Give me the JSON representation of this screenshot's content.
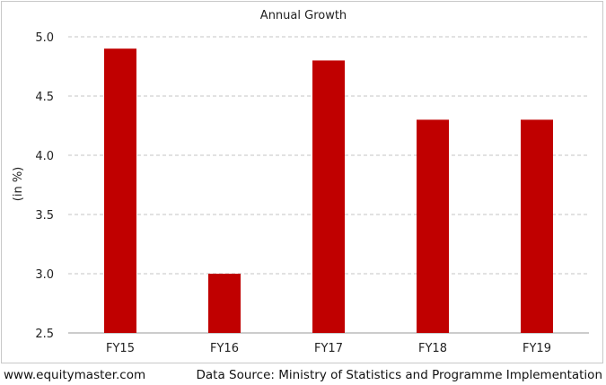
{
  "chart_data": {
    "type": "bar",
    "title": "Annual Growth",
    "xlabel": "",
    "ylabel": "(in %)",
    "categories": [
      "FY15",
      "FY16",
      "FY17",
      "FY18",
      "FY19"
    ],
    "values": [
      4.9,
      3.0,
      4.8,
      4.3,
      4.3
    ],
    "ylim": [
      2.5,
      5.0
    ],
    "yticks": [
      "2.5",
      "3.0",
      "3.5",
      "4.0",
      "4.5",
      "5.0"
    ],
    "grid": true,
    "bar_color": "#c00000"
  },
  "footer": {
    "website": "www.equitymaster.com",
    "source": "Data Source: Ministry of Statistics and Programme Implementation"
  }
}
